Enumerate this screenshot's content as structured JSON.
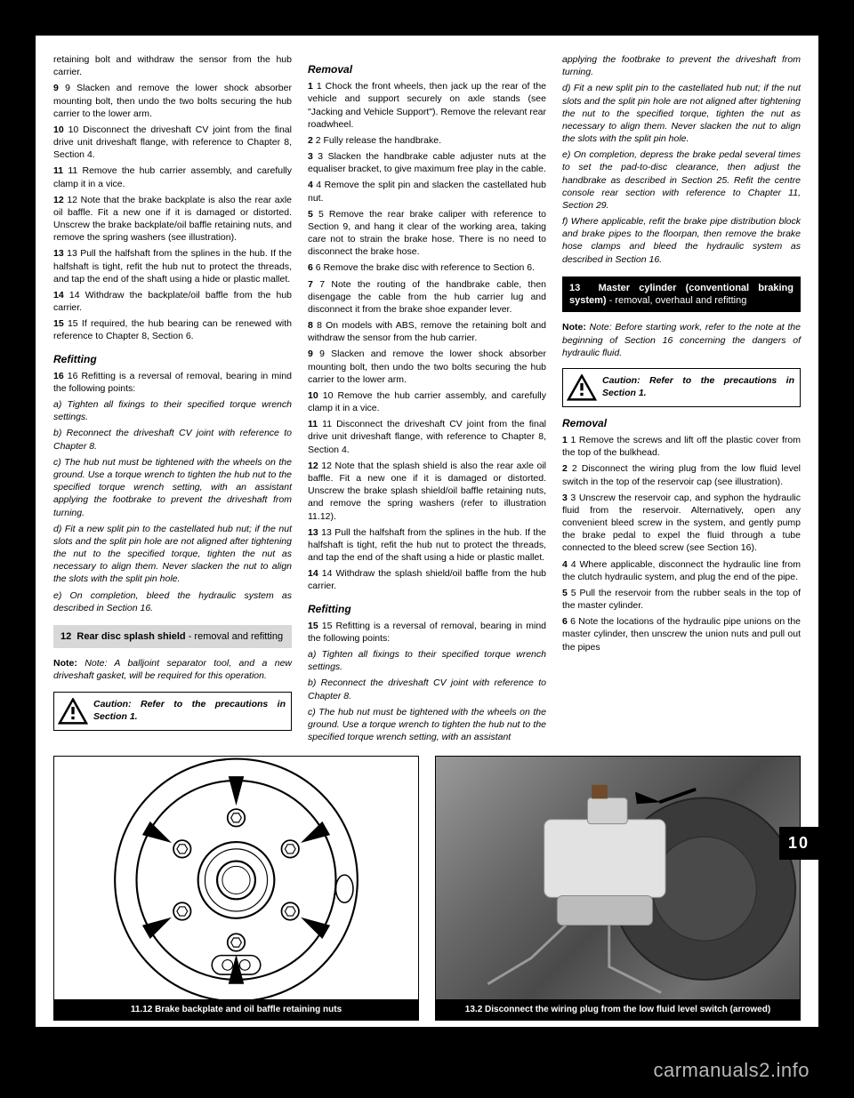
{
  "page": {
    "tab_label": "10",
    "watermark": "carmanuals2.info"
  },
  "col1": {
    "p1": "retaining bolt and withdraw the sensor from the hub carrier.",
    "p2": "9 Slacken and remove the lower shock absorber mounting bolt, then undo the two bolts securing the hub carrier to the lower arm.",
    "p3": "10 Disconnect the driveshaft CV joint from the final drive unit driveshaft flange, with reference to Chapter 8, Section 4.",
    "p4": "11 Remove the hub carrier assembly, and carefully clamp it in a vice.",
    "p5": "12 Note that the brake backplate is also the rear axle oil baffle. Fit a new one if it is damaged or distorted. Unscrew the brake backplate/oil baffle retaining nuts, and remove the spring washers (see illustration).",
    "p6": "13 Pull the halfshaft from the splines in the hub. If the halfshaft is tight, refit the hub nut to protect the threads, and tap the end of the shaft using a hide or plastic mallet.",
    "p7": "14 Withdraw the backplate/oil baffle from the hub carrier.",
    "p8": "15 If required, the hub bearing can be renewed with reference to Chapter 8, Section 6.",
    "refit_head": "Refitting",
    "p9": "16 Refitting is a reversal of removal, bearing in mind the following points:",
    "pa": "a) Tighten all fixings to their specified torque wrench settings.",
    "pb": "b) Reconnect the driveshaft CV joint with reference to Chapter 8.",
    "pc": "c) The hub nut must be tightened with the wheels on the ground. Use a torque wrench to tighten the hub nut to the specified torque wrench setting, with an assistant applying the footbrake to prevent the driveshaft from turning.",
    "pd": "d) Fit a new split pin to the castellated hub nut; if the nut slots and the split pin hole are not aligned after tightening the nut to the specified torque, tighten the nut as necessary to align them. Never slacken the nut to align the slots with the split pin hole.",
    "pe": "e) On completion, bleed the hydraulic system as described in Section 16.",
    "section12_num": "12",
    "section12_title": "Rear disc splash shield",
    "section12_sub": " - removal and refitting",
    "note": "Note: A balljoint separator tool, and a new driveshaft gasket, will be required for this operation.",
    "caution": "Caution: Refer to the precautions in Section 1."
  },
  "col2": {
    "rem_head": "Removal",
    "p1": "1 Chock the front wheels, then jack up the rear of the vehicle and support securely on axle stands (see \"Jacking and Vehicle Support\"). Remove the relevant rear roadwheel.",
    "p2": "2 Fully release the handbrake.",
    "p3": "3 Slacken the handbrake cable adjuster nuts at the equaliser bracket, to give maximum free play in the cable.",
    "p4": "4 Remove the split pin and slacken the castellated hub nut.",
    "p5": "5 Remove the rear brake caliper with reference to Section 9, and hang it clear of the working area, taking care not to strain the brake hose. There is no need to disconnect the brake hose.",
    "p6": "6 Remove the brake disc with reference to Section 6.",
    "p7": "7 Note the routing of the handbrake cable, then disengage the cable from the hub carrier lug and disconnect it from the brake shoe expander lever.",
    "p8": "8 On models with ABS, remove the retaining bolt and withdraw the sensor from the hub carrier.",
    "p9": "9 Slacken and remove the lower shock absorber mounting bolt, then undo the two bolts securing the hub carrier to the lower arm.",
    "p10": "10 Remove the hub carrier assembly, and carefully clamp it in a vice.",
    "p11": "11 Disconnect the driveshaft CV joint from the final drive unit driveshaft flange, with reference to Chapter 8, Section 4.",
    "p12": "12 Note that the splash shield is also the rear axle oil baffle. Fit a new one if it is damaged or distorted. Unscrew the brake splash shield/oil baffle retaining nuts, and remove the spring washers (refer to illustration 11.12).",
    "p13": "13 Pull the halfshaft from the splines in the hub. If the halfshaft is tight, refit the hub nut to protect the threads, and tap the end of the shaft using a hide or plastic mallet.",
    "p14": "14 Withdraw the splash shield/oil baffle from the hub carrier.",
    "refit_head": "Refitting",
    "p15": "15 Refitting is a reversal of removal, bearing in mind the following points:",
    "pa": "a) Tighten all fixings to their specified torque wrench settings.",
    "pb": "b) Reconnect the driveshaft CV joint with reference to Chapter 8.",
    "pc": "c) The hub nut must be tightened with the wheels on the ground. Use a torque wrench to tighten the hub nut to the specified torque wrench setting, with an assistant"
  },
  "col3": {
    "p0": "applying the footbrake to prevent the driveshaft from turning.",
    "pd": "d) Fit a new split pin to the castellated hub nut; if the nut slots and the split pin hole are not aligned after tightening the nut to the specified torque, tighten the nut as necessary to align them. Never slacken the nut to align the slots with the split pin hole.",
    "pe": "e) On completion, depress the brake pedal several times to set the pad-to-disc clearance, then adjust the handbrake as described in Section 25. Refit the centre console rear section with reference to Chapter 11, Section 29.",
    "pf": "f) Where applicable, refit the brake pipe distribution block and brake pipes to the floorpan, then remove the brake hose clamps and bleed the hydraulic system as described in Section 16.",
    "section13_num": "13",
    "section13_title": "Master cylinder (conventional braking system)",
    "section13_sub": " - removal, overhaul and refitting",
    "note": "Note: Before starting work, refer to the note at the beginning of Section 16 concerning the dangers of hydraulic fluid.",
    "caution": "Caution: Refer to the precautions in Section 1.",
    "rem_head": "Removal",
    "p1": "1 Remove the screws and lift off the plastic cover from the top of the bulkhead.",
    "p2": "2 Disconnect the wiring plug from the low fluid level switch in the top of the reservoir cap (see illustration).",
    "p3": "3 Unscrew the reservoir cap, and syphon the hydraulic fluid from the reservoir. Alternatively, open any convenient bleed screw in the system, and gently pump the brake pedal to expel the fluid through a tube connected to the bleed screw (see Section 16).",
    "p4": "4 Where applicable, disconnect the hydraulic line from the clutch hydraulic system, and plug the end of the pipe.",
    "p5": "5 Pull the reservoir from the rubber seals in the top of the master cylinder.",
    "p6": "6 Note the locations of the hydraulic pipe unions on the master cylinder, then unscrew the union nuts and pull out the pipes"
  },
  "figures": {
    "left_caption": "11.12 Brake backplate and oil baffle retaining nuts",
    "right_caption": "13.2 Disconnect the wiring plug from the low fluid level switch (arrowed)",
    "diagram": {
      "outer_r": 115,
      "hub_r": 44,
      "shaft_r": 22,
      "bolt_r": 10,
      "bolt_orbit": 72,
      "bolt_count": 6,
      "bolt_angles": [
        30,
        90,
        150,
        210,
        270,
        330
      ],
      "bg": "#ffffff",
      "stroke": "#000000",
      "line_w": 2.2
    },
    "photo": {
      "arrow_color": "#000000",
      "reservoir_color": "#e2e2e2"
    }
  }
}
